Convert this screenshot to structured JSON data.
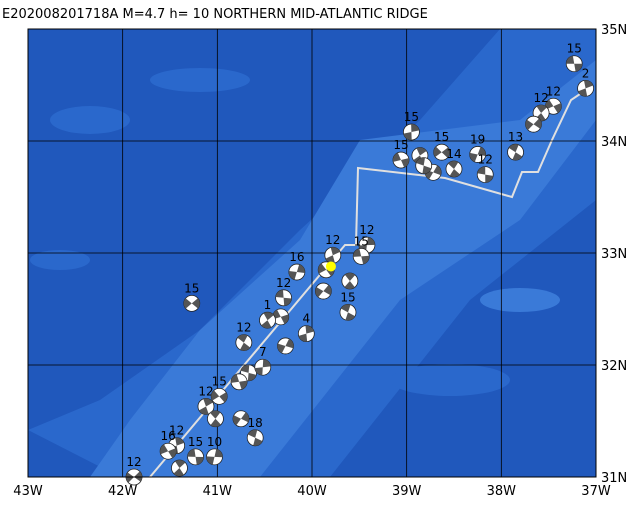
{
  "title": "E202008201718A M=4.7 h= 10 NORTHERN MID-ATLANTIC RIDGE",
  "xlim": [
    -43,
    -37
  ],
  "ylim": [
    31,
    35
  ],
  "lon_ticks": [
    {
      "value": -43,
      "label": "43W"
    },
    {
      "value": -42,
      "label": "42W"
    },
    {
      "value": -41,
      "label": "41W"
    },
    {
      "value": -40,
      "label": "40W"
    },
    {
      "value": -39,
      "label": "39W"
    },
    {
      "value": -38,
      "label": "38W"
    },
    {
      "value": -37,
      "label": "37W"
    }
  ],
  "lat_ticks": [
    {
      "value": 31,
      "label": "31N"
    },
    {
      "value": 32,
      "label": "32N"
    },
    {
      "value": 33,
      "label": "33N"
    },
    {
      "value": 34,
      "label": "34N"
    },
    {
      "value": 35,
      "label": "35N"
    }
  ],
  "epicenter": {
    "lon": -39.8,
    "lat": 32.88,
    "color": "#ffff00"
  },
  "events": [
    {
      "lon": -37.23,
      "lat": 34.69,
      "label": "15"
    },
    {
      "lon": -37.11,
      "lat": 34.47,
      "label": "2"
    },
    {
      "lon": -37.45,
      "lat": 34.31,
      "label": "12"
    },
    {
      "lon": -37.58,
      "lat": 34.25,
      "label": "12"
    },
    {
      "lon": -37.66,
      "lat": 34.15
    },
    {
      "lon": -37.85,
      "lat": 33.9,
      "label": "13"
    },
    {
      "lon": -38.25,
      "lat": 33.88,
      "label": "19"
    },
    {
      "lon": -38.17,
      "lat": 33.7,
      "label": "12"
    },
    {
      "lon": -38.95,
      "lat": 34.08,
      "label": "15"
    },
    {
      "lon": -39.06,
      "lat": 33.83,
      "label": "15"
    },
    {
      "lon": -38.86,
      "lat": 33.87
    },
    {
      "lon": -38.63,
      "lat": 33.9,
      "label": "15"
    },
    {
      "lon": -38.5,
      "lat": 33.75,
      "label": "14"
    },
    {
      "lon": -38.72,
      "lat": 33.72
    },
    {
      "lon": -38.82,
      "lat": 33.78
    },
    {
      "lon": -39.42,
      "lat": 33.07,
      "label": "12"
    },
    {
      "lon": -39.48,
      "lat": 32.97,
      "label": "15"
    },
    {
      "lon": -39.78,
      "lat": 32.98,
      "label": "12"
    },
    {
      "lon": -39.85,
      "lat": 32.85
    },
    {
      "lon": -39.6,
      "lat": 32.75
    },
    {
      "lon": -39.88,
      "lat": 32.66
    },
    {
      "lon": -39.62,
      "lat": 32.47,
      "label": "15"
    },
    {
      "lon": -40.16,
      "lat": 32.83,
      "label": "16"
    },
    {
      "lon": -40.3,
      "lat": 32.6,
      "label": "12"
    },
    {
      "lon": -40.06,
      "lat": 32.28,
      "label": "4"
    },
    {
      "lon": -40.33,
      "lat": 32.43
    },
    {
      "lon": -40.47,
      "lat": 32.4,
      "label": "1"
    },
    {
      "lon": -41.27,
      "lat": 32.55,
      "label": "15"
    },
    {
      "lon": -40.72,
      "lat": 32.2,
      "label": "12"
    },
    {
      "lon": -40.28,
      "lat": 32.17
    },
    {
      "lon": -40.67,
      "lat": 31.93
    },
    {
      "lon": -40.52,
      "lat": 31.98,
      "label": "7"
    },
    {
      "lon": -40.77,
      "lat": 31.85
    },
    {
      "lon": -41.12,
      "lat": 31.63,
      "label": "12"
    },
    {
      "lon": -40.98,
      "lat": 31.72,
      "label": "15"
    },
    {
      "lon": -41.02,
      "lat": 31.52
    },
    {
      "lon": -40.75,
      "lat": 31.52
    },
    {
      "lon": -40.6,
      "lat": 31.35,
      "label": "18"
    },
    {
      "lon": -41.03,
      "lat": 31.18,
      "label": "10"
    },
    {
      "lon": -41.23,
      "lat": 31.18,
      "label": "15"
    },
    {
      "lon": -41.43,
      "lat": 31.28,
      "label": "12"
    },
    {
      "lon": -41.52,
      "lat": 31.23,
      "label": "16"
    },
    {
      "lon": -41.4,
      "lat": 31.08
    },
    {
      "lon": -41.88,
      "lat": 31.0,
      "label": "12"
    }
  ]
}
